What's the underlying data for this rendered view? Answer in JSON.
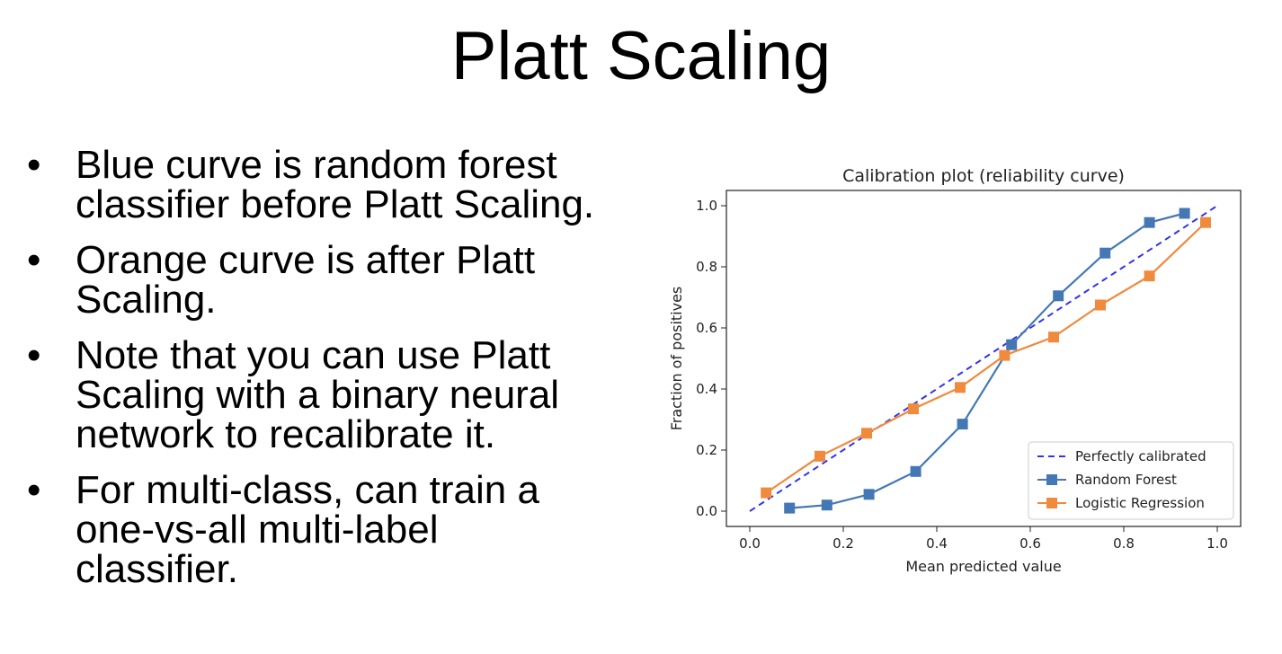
{
  "slide": {
    "title": "Platt Scaling",
    "bullets": [
      {
        "lines": [
          "Blue curve is random forest",
          "classifier before Platt Scaling."
        ]
      },
      {
        "lines": [
          "Orange curve is after Platt",
          "Scaling."
        ]
      },
      {
        "lines": [
          "Note that you can use Platt",
          "Scaling with a binary neural",
          "network to recalibrate it."
        ]
      },
      {
        "lines": [
          "For multi-class, can train a",
          "one-vs-all multi-label",
          "classifier."
        ]
      }
    ],
    "bullet_symbol": "•"
  },
  "chart_data": {
    "type": "line",
    "title": "Calibration plot (reliability curve)",
    "xlabel": "Mean predicted value",
    "ylabel": "Fraction of positives",
    "xlim": [
      -0.05,
      1.05
    ],
    "ylim": [
      -0.05,
      1.05
    ],
    "xticks": [
      0.0,
      0.2,
      0.4,
      0.6,
      0.8,
      1.0
    ],
    "yticks": [
      0.0,
      0.2,
      0.4,
      0.6,
      0.8,
      1.0
    ],
    "tick_labels": [
      "0.0",
      "0.2",
      "0.4",
      "0.6",
      "0.8",
      "1.0"
    ],
    "grid": false,
    "legend_position": "lower-right",
    "series": [
      {
        "name": "Perfectly calibrated",
        "style": "dashed",
        "marker": "none",
        "color": "#3333ee",
        "x": [
          0.0,
          1.0
        ],
        "y": [
          0.0,
          1.0
        ]
      },
      {
        "name": "Random Forest",
        "style": "solid",
        "marker": "square",
        "color": "#4478b4",
        "x": [
          0.085,
          0.165,
          0.255,
          0.355,
          0.455,
          0.56,
          0.66,
          0.76,
          0.855,
          0.93
        ],
        "y": [
          0.01,
          0.02,
          0.055,
          0.13,
          0.285,
          0.545,
          0.705,
          0.845,
          0.945,
          0.975
        ]
      },
      {
        "name": "Logistic Regression",
        "style": "solid",
        "marker": "square",
        "color": "#f08a3c",
        "x": [
          0.035,
          0.15,
          0.25,
          0.35,
          0.45,
          0.545,
          0.65,
          0.75,
          0.855,
          0.975
        ],
        "y": [
          0.06,
          0.18,
          0.255,
          0.335,
          0.405,
          0.51,
          0.57,
          0.675,
          0.77,
          0.945
        ]
      }
    ]
  }
}
